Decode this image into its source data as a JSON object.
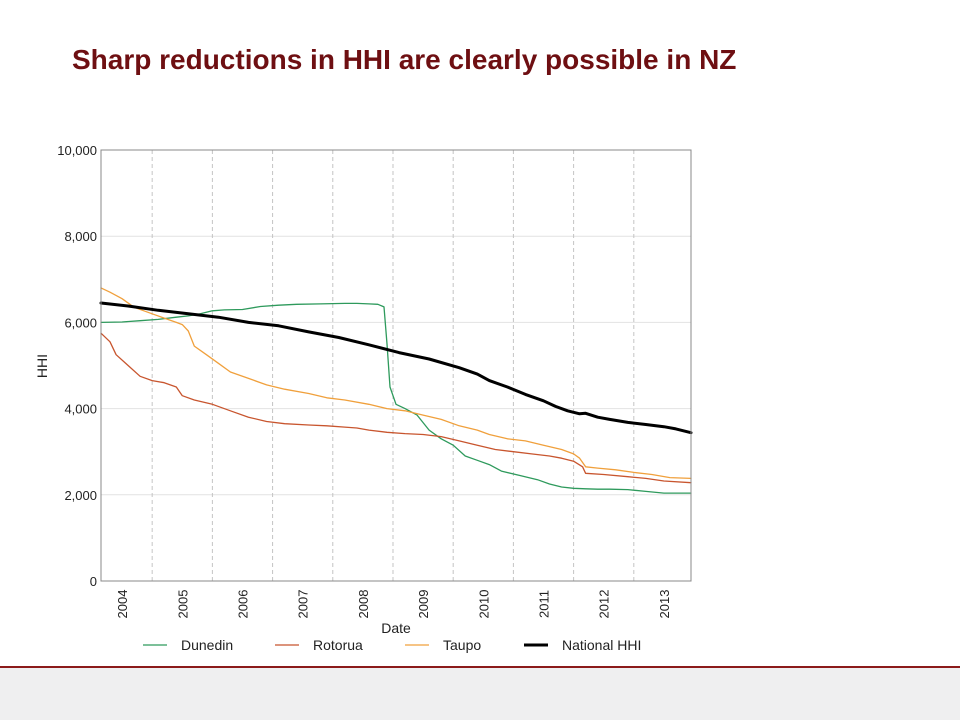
{
  "slide": {
    "title": "Sharp reductions in HHI are clearly possible in NZ"
  },
  "chart_data": {
    "type": "line",
    "xlabel": "Date",
    "ylabel": "HHI",
    "xlim": [
      2003.55,
      2013.35
    ],
    "ylim": [
      0,
      10000
    ],
    "y_ticks": [
      0,
      2000,
      4000,
      6000,
      8000,
      10000
    ],
    "y_tick_labels": [
      "0",
      "2,000",
      "4,000",
      "6,000",
      "8,000",
      "10,000"
    ],
    "x_tick_labels": [
      "2004",
      "2005",
      "2006",
      "2007",
      "2008",
      "2009",
      "2010",
      "2011",
      "2012",
      "2013"
    ],
    "x_tick_values": [
      2003.9,
      2004.9,
      2005.9,
      2006.9,
      2007.9,
      2008.9,
      2009.9,
      2010.9,
      2011.9,
      2012.9
    ],
    "vlines": [
      2004.4,
      2005.4,
      2006.4,
      2007.4,
      2008.4,
      2009.4,
      2010.4,
      2011.4,
      2012.4
    ],
    "grid": "y",
    "legend_position": "bottom",
    "series": [
      {
        "name": "Dunedin",
        "color": "#2e9a5c",
        "width": 1.3,
        "x": [
          2003.55,
          2003.9,
          2004.2,
          2004.5,
          2004.8,
          2005.0,
          2005.2,
          2005.4,
          2005.6,
          2005.9,
          2006.2,
          2006.5,
          2006.8,
          2007.2,
          2007.6,
          2007.8,
          2008.0,
          2008.15,
          2008.25,
          2008.3,
          2008.35,
          2008.45,
          2008.6,
          2008.8,
          2009.0,
          2009.2,
          2009.4,
          2009.6,
          2009.8,
          2010.0,
          2010.2,
          2010.5,
          2010.8,
          2011.0,
          2011.2,
          2011.4,
          2011.6,
          2011.8,
          2012.0,
          2012.3,
          2012.6,
          2012.9,
          2013.1,
          2013.35
        ],
        "y": [
          6000,
          6010,
          6040,
          6070,
          6120,
          6150,
          6200,
          6270,
          6290,
          6300,
          6370,
          6400,
          6420,
          6430,
          6440,
          6440,
          6430,
          6420,
          6360,
          5500,
          4500,
          4100,
          4000,
          3850,
          3500,
          3300,
          3150,
          2900,
          2800,
          2700,
          2550,
          2450,
          2350,
          2250,
          2180,
          2150,
          2140,
          2130,
          2130,
          2120,
          2080,
          2040,
          2040,
          2040
        ]
      },
      {
        "name": "Rotorua",
        "color": "#c8552e",
        "width": 1.3,
        "x": [
          2003.55,
          2003.7,
          2003.8,
          2004.0,
          2004.2,
          2004.4,
          2004.6,
          2004.8,
          2004.9,
          2005.1,
          2005.4,
          2005.7,
          2006.0,
          2006.3,
          2006.6,
          2007.0,
          2007.3,
          2007.6,
          2007.8,
          2008.0,
          2008.3,
          2008.6,
          2008.9,
          2009.2,
          2009.5,
          2009.8,
          2010.1,
          2010.4,
          2010.7,
          2011.0,
          2011.2,
          2011.4,
          2011.55,
          2011.6,
          2011.9,
          2012.3,
          2012.6,
          2012.9,
          2013.35
        ],
        "y": [
          5750,
          5550,
          5250,
          5000,
          4750,
          4650,
          4600,
          4500,
          4300,
          4200,
          4100,
          3950,
          3800,
          3700,
          3650,
          3620,
          3600,
          3570,
          3550,
          3500,
          3450,
          3420,
          3400,
          3350,
          3250,
          3150,
          3050,
          3000,
          2950,
          2900,
          2850,
          2780,
          2650,
          2500,
          2470,
          2420,
          2380,
          2320,
          2280
        ]
      },
      {
        "name": "Taupo",
        "color": "#f0a03c",
        "width": 1.3,
        "x": [
          2003.55,
          2003.7,
          2003.9,
          2004.1,
          2004.4,
          2004.6,
          2004.8,
          2004.9,
          2005.0,
          2005.1,
          2005.3,
          2005.5,
          2005.7,
          2006.0,
          2006.3,
          2006.6,
          2007.0,
          2007.3,
          2007.6,
          2008.0,
          2008.3,
          2008.6,
          2008.9,
          2009.2,
          2009.5,
          2009.8,
          2010.0,
          2010.3,
          2010.6,
          2010.9,
          2011.2,
          2011.4,
          2011.5,
          2011.6,
          2011.8,
          2012.1,
          2012.4,
          2012.7,
          2013.0,
          2013.35
        ],
        "y": [
          6800,
          6700,
          6550,
          6350,
          6200,
          6100,
          6000,
          5950,
          5800,
          5450,
          5250,
          5050,
          4850,
          4700,
          4550,
          4450,
          4350,
          4250,
          4200,
          4100,
          4000,
          3950,
          3850,
          3750,
          3600,
          3500,
          3400,
          3300,
          3250,
          3150,
          3050,
          2950,
          2850,
          2650,
          2620,
          2580,
          2520,
          2470,
          2400,
          2380
        ]
      },
      {
        "name": "National HHI",
        "color": "#000000",
        "width": 3,
        "x": [
          2003.55,
          2004.0,
          2004.5,
          2005.0,
          2005.5,
          2006.0,
          2006.5,
          2007.0,
          2007.5,
          2008.0,
          2008.5,
          2009.0,
          2009.5,
          2009.8,
          2010.0,
          2010.3,
          2010.6,
          2010.9,
          2011.1,
          2011.3,
          2011.5,
          2011.6,
          2011.8,
          2012.0,
          2012.3,
          2012.6,
          2012.9,
          2013.1,
          2013.35
        ],
        "y": [
          6450,
          6380,
          6280,
          6200,
          6120,
          6000,
          5920,
          5780,
          5650,
          5480,
          5300,
          5150,
          4950,
          4800,
          4650,
          4500,
          4330,
          4180,
          4050,
          3950,
          3880,
          3890,
          3800,
          3750,
          3680,
          3630,
          3580,
          3530,
          3440
        ]
      }
    ]
  }
}
